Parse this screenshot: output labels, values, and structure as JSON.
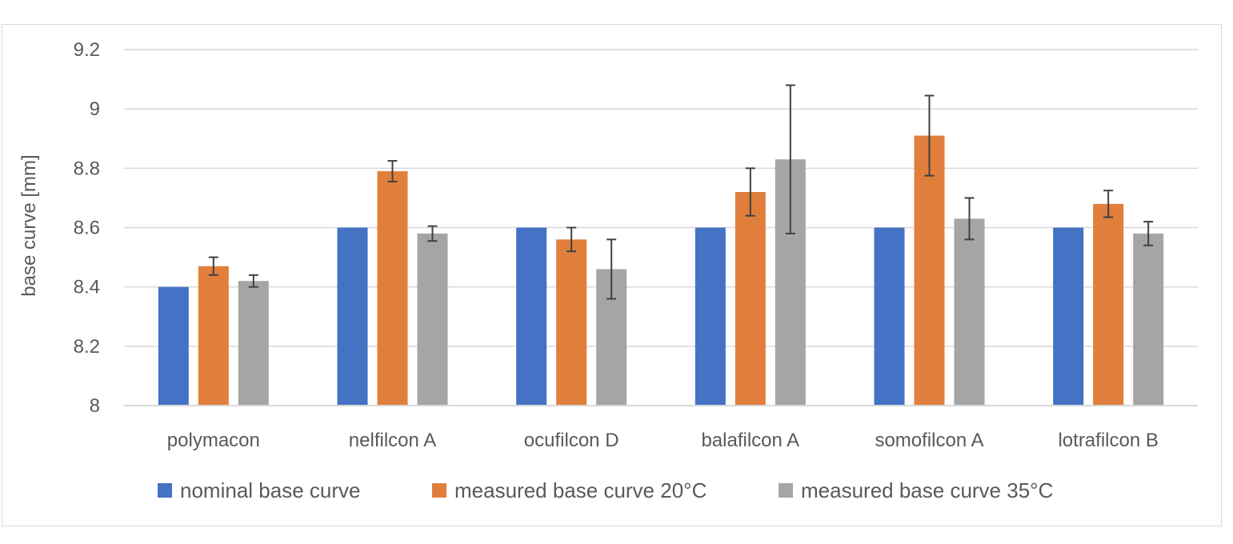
{
  "chart_data": {
    "type": "bar",
    "title": "",
    "xlabel": "",
    "ylabel": "base curve [mm]",
    "ylim": [
      8,
      9.2
    ],
    "yticks": [
      8,
      8.2,
      8.4,
      8.6,
      8.8,
      9,
      9.2
    ],
    "ytick_labels": [
      "8",
      "8.2",
      "8.4",
      "8.6",
      "8.8",
      "9",
      "9.2"
    ],
    "grid": true,
    "legend_position": "bottom",
    "categories": [
      "polymacon",
      "nelfilcon A",
      "ocufilcon D",
      "balafilcon A",
      "somofilcon A",
      "lotrafilcon B"
    ],
    "series": [
      {
        "name": "nominal base curve",
        "color": "#4472c4",
        "values": [
          8.4,
          8.6,
          8.6,
          8.6,
          8.6,
          8.6
        ],
        "errors": null
      },
      {
        "name": "measured base curve 20°C",
        "color": "#e07f3c",
        "values": [
          8.47,
          8.79,
          8.56,
          8.72,
          8.91,
          8.68
        ],
        "errors": [
          0.03,
          0.035,
          0.04,
          0.08,
          0.135,
          0.045
        ]
      },
      {
        "name": "measured base curve 35°C",
        "color": "#a5a5a5",
        "values": [
          8.42,
          8.58,
          8.46,
          8.83,
          8.63,
          8.58
        ],
        "errors": [
          0.02,
          0.025,
          0.1,
          0.25,
          0.07,
          0.04
        ]
      }
    ]
  }
}
